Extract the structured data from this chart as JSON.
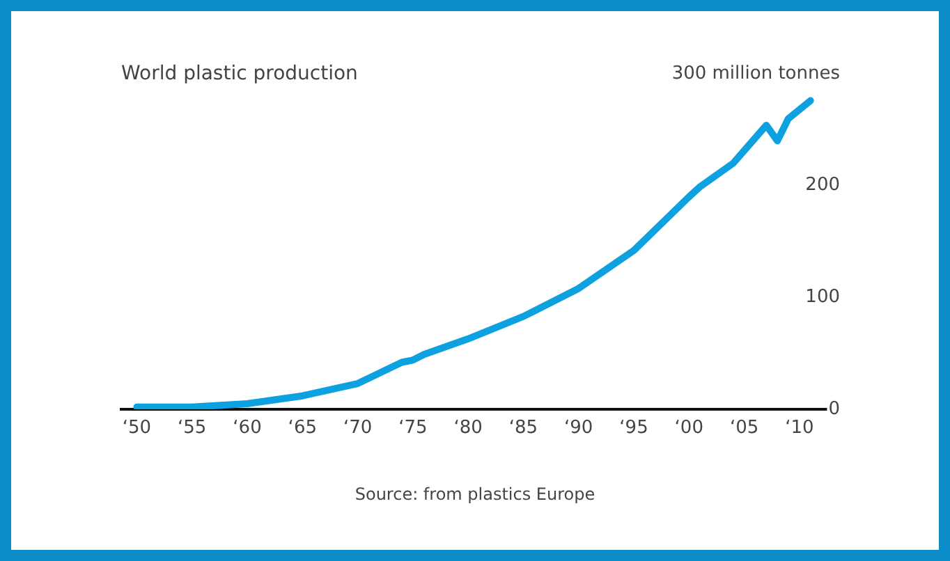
{
  "chart_data": {
    "type": "line",
    "title": "World plastic production",
    "x": [
      "1950",
      "1955",
      "1960",
      "1965",
      "1970",
      "1974",
      "1975",
      "1976",
      "1980",
      "1985",
      "1990",
      "1995",
      "2000",
      "2001",
      "2004",
      "2007",
      "2008",
      "2009",
      "2011"
    ],
    "series": [
      {
        "color": "#0ea1e0",
        "values": [
          2,
          2,
          5,
          12,
          23,
          42,
          44,
          49,
          63,
          83,
          108,
          142,
          190,
          199,
          220,
          254,
          240,
          260,
          276
        ]
      }
    ],
    "xlim": [
      "1948-08",
      "2013-09"
    ],
    "xticks": [
      {
        "value": "1950",
        "label": "‘50"
      },
      {
        "value": "1955",
        "label": "‘55"
      },
      {
        "value": "1960",
        "label": "‘60"
      },
      {
        "value": "1965",
        "label": "‘65"
      },
      {
        "value": "1970",
        "label": "‘70"
      },
      {
        "value": "1975",
        "label": "‘75"
      },
      {
        "value": "1980",
        "label": "‘80"
      },
      {
        "value": "1985",
        "label": "‘85"
      },
      {
        "value": "1990",
        "label": "‘90"
      },
      {
        "value": "1995",
        "label": "‘95"
      },
      {
        "value": "2000",
        "label": "‘00"
      },
      {
        "value": "2005",
        "label": "‘05"
      },
      {
        "value": "2010",
        "label": "‘10"
      }
    ],
    "ylim": [
      0,
      300
    ],
    "yticks": [
      0,
      100,
      200,
      {
        "value": 300,
        "label": "300 million tonnes"
      }
    ],
    "grid": false,
    "legend": false,
    "marker": "none",
    "line_style": "solid",
    "annotations": [
      "Source: from plastics Europe"
    ]
  }
}
